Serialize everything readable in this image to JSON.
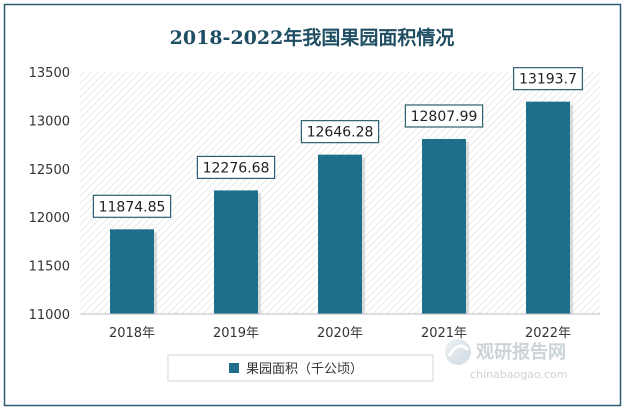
{
  "watermark": {
    "brand_cn": "观研报告网",
    "brand_en": "chinabaogao.com"
  },
  "chart_data": {
    "type": "bar",
    "title": "2018-2022年我国果园面积情况",
    "categories": [
      "2018年",
      "2019年",
      "2020年",
      "2021年",
      "2022年"
    ],
    "series": [
      {
        "name": "果园面积（千公顷）",
        "values": [
          11874.85,
          12276.68,
          12646.28,
          12807.99,
          13193.7
        ],
        "labels": [
          "11874.85",
          "12276.68",
          "12646.28",
          "12807.99",
          "13193.7"
        ],
        "color": "#1F6E8C"
      }
    ],
    "xlabel": "",
    "ylabel": "",
    "ylim": [
      11000,
      13500
    ],
    "yticks": [
      11000,
      11500,
      12000,
      12500,
      13000,
      13500
    ],
    "grid": false,
    "legend": "bottom-center",
    "colors": {
      "bar": "#1F6E8C",
      "border": "#2E5E72",
      "title": "#1F4E63",
      "plot_hatch": "#E6E6E6"
    }
  }
}
